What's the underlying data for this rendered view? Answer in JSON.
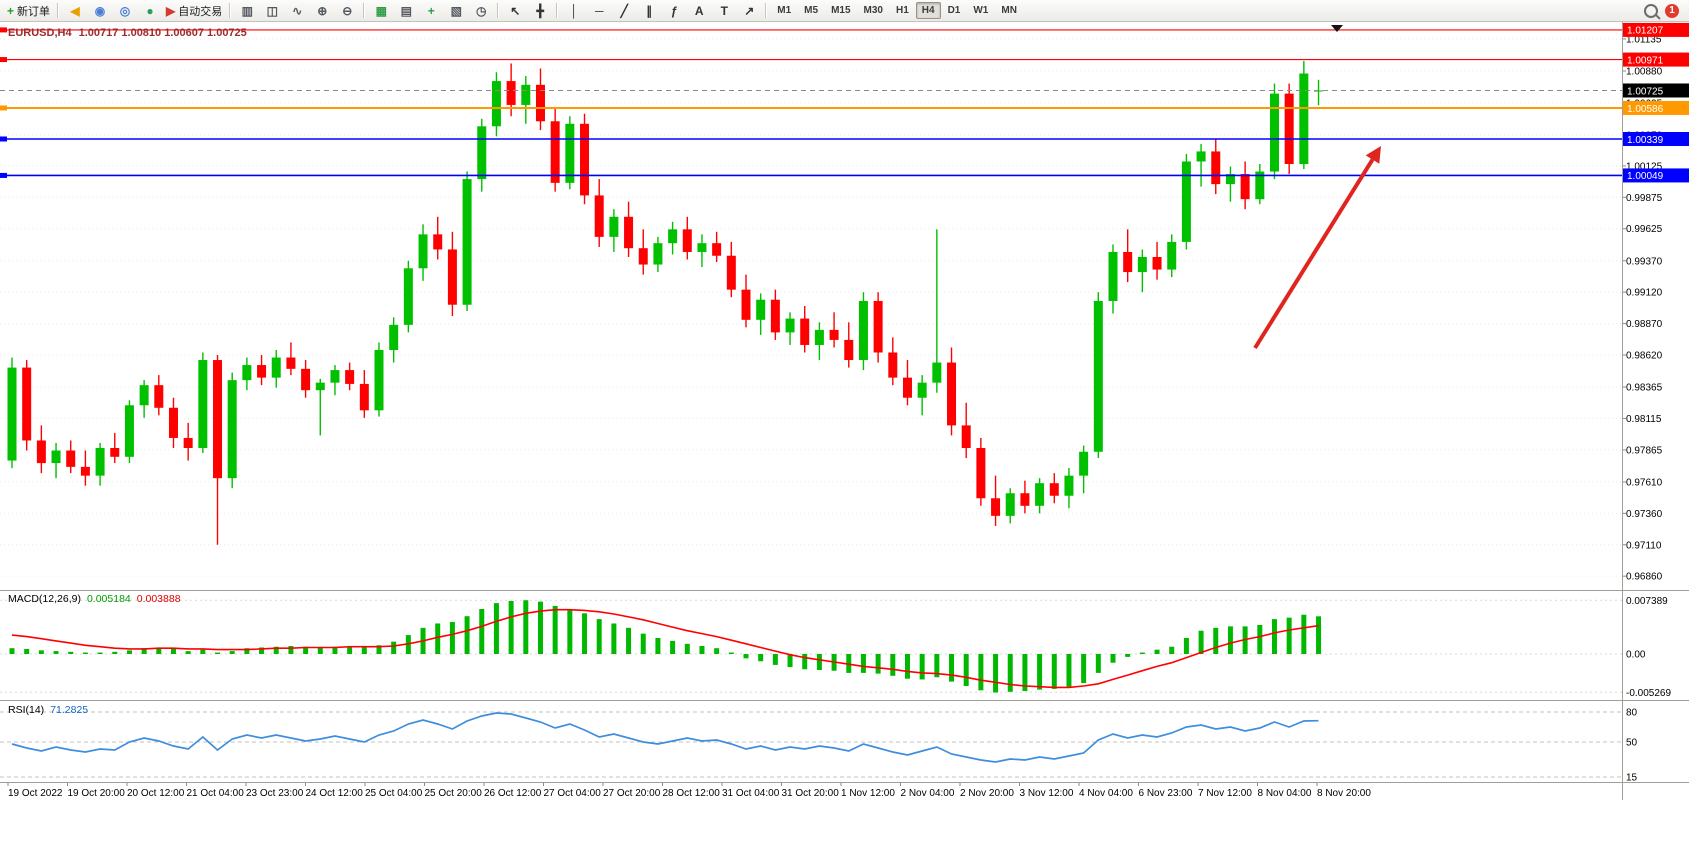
{
  "toolbar": {
    "new_order_label": "新订单",
    "auto_trading_label": "自动交易",
    "timeframes": [
      "M1",
      "M5",
      "M15",
      "M30",
      "H1",
      "H4",
      "D1",
      "W1",
      "MN"
    ],
    "active_timeframe": "H4",
    "notification_count": "1",
    "icons": [
      {
        "name": "new-order-button",
        "glyph": "+",
        "color": "#1f9d2c",
        "label": "新订单"
      },
      {
        "sep": true
      },
      {
        "name": "announcement-icon",
        "glyph": "◀",
        "color": "#e8a000"
      },
      {
        "name": "community-icon",
        "glyph": "◉",
        "color": "#4a7fd4"
      },
      {
        "name": "profiles-icon",
        "glyph": "◎",
        "color": "#4a7fd4"
      },
      {
        "name": "service-icon",
        "glyph": "●",
        "color": "#2aa05a"
      },
      {
        "name": "auto-trading-button",
        "glyph": "▶",
        "color": "#d43a2f",
        "label": "自动交易"
      },
      {
        "sep": true
      },
      {
        "name": "bars-chart-icon",
        "glyph": "▥",
        "color": "#555a60"
      },
      {
        "name": "candlestick-chart-icon",
        "glyph": "◫",
        "color": "#555a60"
      },
      {
        "name": "line-chart-icon",
        "glyph": "∿",
        "color": "#555a60"
      },
      {
        "name": "zoom-in-icon",
        "glyph": "⊕",
        "color": "#555a60"
      },
      {
        "name": "zoom-out-icon",
        "glyph": "⊖",
        "color": "#555a60"
      },
      {
        "sep": true
      },
      {
        "name": "tile-windows-icon",
        "glyph": "▦",
        "color": "#2f9e44"
      },
      {
        "name": "indicators-icon",
        "glyph": "▤",
        "color": "#555a60"
      },
      {
        "name": "add-indicator-icon",
        "glyph": "+",
        "color": "#2f9e44"
      },
      {
        "name": "templates-icon",
        "glyph": "▧",
        "color": "#555a60"
      },
      {
        "name": "period-icon",
        "glyph": "◷",
        "color": "#555a60"
      },
      {
        "sep": true
      },
      {
        "name": "cursor-icon",
        "glyph": "↖",
        "color": "#333333"
      },
      {
        "name": "crosshair-icon",
        "glyph": "╋",
        "color": "#333333"
      },
      {
        "sep": true
      },
      {
        "name": "vertical-line-icon",
        "glyph": "│",
        "color": "#333333"
      },
      {
        "name": "horizontal-line-icon",
        "glyph": "─",
        "color": "#333333"
      },
      {
        "name": "trendline-icon",
        "glyph": "╱",
        "color": "#333333"
      },
      {
        "name": "channel-icon",
        "glyph": "∥",
        "color": "#333333"
      },
      {
        "name": "fibonacci-icon",
        "glyph": "ƒ",
        "color": "#333333"
      },
      {
        "name": "text-icon",
        "glyph": "A",
        "color": "#333333"
      },
      {
        "name": "label-icon",
        "glyph": "T",
        "color": "#333333"
      },
      {
        "name": "arrows-icon",
        "glyph": "↗",
        "color": "#333333"
      },
      {
        "sep": true
      }
    ]
  },
  "chart": {
    "symbol_title": "EURUSD,H4",
    "ohlc_title": "1.00717 1.00810 1.00607 1.00725",
    "colors": {
      "up": "#00c000",
      "down": "#ff0000",
      "background": "#ffffff",
      "grid": "#ececec",
      "axis_text": "#000000",
      "title": "#9c2b2b",
      "macd_histogram": "#00b800",
      "macd_signal": "#ff0000",
      "rsi_line": "#3e8ede",
      "separator": "#a39e95"
    },
    "levels": [
      {
        "label": "1.01207",
        "price": 1.01207,
        "color": "#ff0000",
        "width": 1.2
      },
      {
        "label": "1.00971",
        "price": 1.00971,
        "color": "#ff0000",
        "width": 1.2
      },
      {
        "label": "1.00586",
        "price": 1.00586,
        "color": "#ff9900",
        "width": 2
      },
      {
        "label": "1.00339",
        "price": 1.00339,
        "color": "#0000ff",
        "width": 1.6
      },
      {
        "label": "1.00049",
        "price": 1.00049,
        "color": "#0000ff",
        "width": 1.6
      }
    ],
    "current_price": {
      "label": "1.00725",
      "price": 1.00725,
      "box_color": "#000000"
    },
    "price_axis_labels": [
      "1.01135",
      "1.00880",
      "1.00625",
      "1.00370",
      "1.00125",
      "0.99875",
      "0.99625",
      "0.99370",
      "0.99120",
      "0.98870",
      "0.98620",
      "0.98365",
      "0.98115",
      "0.97865",
      "0.97610",
      "0.97360",
      "0.97110",
      "0.96860"
    ],
    "macd": {
      "title": "MACD(12,26,9)",
      "value_main": "0.005184",
      "value_signal": "0.003888",
      "axis_labels": [
        "0.007389",
        "0.00",
        "-0.005269"
      ]
    },
    "rsi": {
      "title": "RSI(14)",
      "value": "71.2825",
      "level_labels": [
        "80",
        "50",
        "15"
      ]
    },
    "annotations": {
      "trend_arrow": {
        "from": [
          1255,
          348
        ],
        "to": [
          1381,
          146
        ],
        "color": "#e0251f"
      },
      "shift_marker_x": 1337
    }
  },
  "chart_data": {
    "type": "candlestick",
    "symbol": "EURUSD",
    "timeframe": "H4",
    "y_range": {
      "min": 0.9675,
      "max": 1.0127
    },
    "x_labels": [
      "19 Oct 2022",
      "19 Oct 20:00",
      "20 Oct 12:00",
      "21 Oct 04:00",
      "23 Oct 23:00",
      "24 Oct 12:00",
      "25 Oct 04:00",
      "25 Oct 20:00",
      "26 Oct 12:00",
      "27 Oct 04:00",
      "27 Oct 20:00",
      "28 Oct 12:00",
      "31 Oct 04:00",
      "31 Oct 20:00",
      "1 Nov 12:00",
      "2 Nov 04:00",
      "2 Nov 20:00",
      "3 Nov 12:00",
      "4 Nov 04:00",
      "6 Nov 23:00",
      "7 Nov 12:00",
      "8 Nov 04:00",
      "8 Nov 20:00"
    ],
    "candles": [
      [
        0.9778,
        0.986,
        0.9772,
        0.9852
      ],
      [
        0.9852,
        0.9858,
        0.9786,
        0.9794
      ],
      [
        0.9794,
        0.9806,
        0.9768,
        0.9776
      ],
      [
        0.9776,
        0.9792,
        0.9764,
        0.9786
      ],
      [
        0.9786,
        0.9794,
        0.9768,
        0.9773
      ],
      [
        0.9773,
        0.9786,
        0.9758,
        0.9766
      ],
      [
        0.9766,
        0.9792,
        0.9758,
        0.9788
      ],
      [
        0.9788,
        0.98,
        0.9776,
        0.9781
      ],
      [
        0.9781,
        0.9826,
        0.9776,
        0.9822
      ],
      [
        0.9822,
        0.9842,
        0.9812,
        0.9838
      ],
      [
        0.9838,
        0.9846,
        0.9814,
        0.982
      ],
      [
        0.982,
        0.9828,
        0.9788,
        0.9796
      ],
      [
        0.9796,
        0.9808,
        0.9778,
        0.9788
      ],
      [
        0.9788,
        0.9864,
        0.9784,
        0.9858
      ],
      [
        0.9858,
        0.9862,
        0.9711,
        0.9764
      ],
      [
        0.9764,
        0.9848,
        0.9756,
        0.9842
      ],
      [
        0.9842,
        0.986,
        0.9834,
        0.9854
      ],
      [
        0.9854,
        0.9862,
        0.9838,
        0.9844
      ],
      [
        0.9844,
        0.9866,
        0.9836,
        0.986
      ],
      [
        0.986,
        0.9872,
        0.9846,
        0.9851
      ],
      [
        0.9851,
        0.9858,
        0.9828,
        0.9834
      ],
      [
        0.9834,
        0.9843,
        0.9798,
        0.984
      ],
      [
        0.984,
        0.9854,
        0.983,
        0.985
      ],
      [
        0.985,
        0.9856,
        0.9834,
        0.9839
      ],
      [
        0.9839,
        0.985,
        0.9812,
        0.9818
      ],
      [
        0.9818,
        0.9872,
        0.9813,
        0.9866
      ],
      [
        0.9866,
        0.9892,
        0.9856,
        0.9886
      ],
      [
        0.9886,
        0.9937,
        0.988,
        0.9931
      ],
      [
        0.9931,
        0.9966,
        0.9921,
        0.9958
      ],
      [
        0.9958,
        0.9972,
        0.9938,
        0.9946
      ],
      [
        0.9946,
        0.996,
        0.9893,
        0.9902
      ],
      [
        0.9902,
        1.0008,
        0.9897,
        1.0002
      ],
      [
        1.0002,
        1.005,
        0.9992,
        1.0044
      ],
      [
        1.0044,
        1.0087,
        1.0036,
        1.008
      ],
      [
        1.008,
        1.0094,
        1.0052,
        1.0061
      ],
      [
        1.0061,
        1.0084,
        1.0046,
        1.0077
      ],
      [
        1.0077,
        1.009,
        1.0041,
        1.0048
      ],
      [
        1.0048,
        1.0058,
        0.9992,
        0.9999
      ],
      [
        0.9999,
        1.0052,
        0.9994,
        1.0046
      ],
      [
        1.0046,
        1.0054,
        0.9982,
        0.9989
      ],
      [
        0.9989,
        1.0002,
        0.9948,
        0.9956
      ],
      [
        0.9956,
        0.9978,
        0.9944,
        0.9972
      ],
      [
        0.9972,
        0.9984,
        0.994,
        0.9947
      ],
      [
        0.9947,
        0.9962,
        0.9926,
        0.9934
      ],
      [
        0.9934,
        0.9956,
        0.9928,
        0.9951
      ],
      [
        0.9951,
        0.9968,
        0.9942,
        0.9962
      ],
      [
        0.9962,
        0.9972,
        0.9938,
        0.9944
      ],
      [
        0.9944,
        0.9958,
        0.9932,
        0.9951
      ],
      [
        0.9951,
        0.996,
        0.9936,
        0.9941
      ],
      [
        0.9941,
        0.9952,
        0.9908,
        0.9914
      ],
      [
        0.9914,
        0.9926,
        0.9884,
        0.989
      ],
      [
        0.989,
        0.9911,
        0.9878,
        0.9906
      ],
      [
        0.9906,
        0.9914,
        0.9874,
        0.988
      ],
      [
        0.988,
        0.9896,
        0.987,
        0.9891
      ],
      [
        0.9891,
        0.9901,
        0.9864,
        0.987
      ],
      [
        0.987,
        0.9888,
        0.9858,
        0.9882
      ],
      [
        0.9882,
        0.9896,
        0.9868,
        0.9874
      ],
      [
        0.9874,
        0.9888,
        0.9852,
        0.9858
      ],
      [
        0.9858,
        0.9912,
        0.985,
        0.9905
      ],
      [
        0.9905,
        0.9912,
        0.9856,
        0.9864
      ],
      [
        0.9864,
        0.9876,
        0.9838,
        0.9844
      ],
      [
        0.9844,
        0.9858,
        0.9822,
        0.9828
      ],
      [
        0.9828,
        0.9846,
        0.9814,
        0.984
      ],
      [
        0.984,
        0.9962,
        0.9832,
        0.9856
      ],
      [
        0.9856,
        0.9868,
        0.9798,
        0.9806
      ],
      [
        0.9806,
        0.9824,
        0.978,
        0.9788
      ],
      [
        0.9788,
        0.9796,
        0.9742,
        0.9748
      ],
      [
        0.9748,
        0.9766,
        0.9726,
        0.9734
      ],
      [
        0.9734,
        0.9756,
        0.9728,
        0.9752
      ],
      [
        0.9752,
        0.9762,
        0.9736,
        0.9742
      ],
      [
        0.9742,
        0.9764,
        0.9736,
        0.976
      ],
      [
        0.976,
        0.9768,
        0.9744,
        0.975
      ],
      [
        0.975,
        0.9772,
        0.974,
        0.9766
      ],
      [
        0.9766,
        0.979,
        0.9752,
        0.9785
      ],
      [
        0.9785,
        0.9912,
        0.978,
        0.9905
      ],
      [
        0.9905,
        0.995,
        0.9895,
        0.9944
      ],
      [
        0.9944,
        0.9962,
        0.992,
        0.9928
      ],
      [
        0.9928,
        0.9946,
        0.9912,
        0.994
      ],
      [
        0.994,
        0.9952,
        0.9922,
        0.993
      ],
      [
        0.993,
        0.9958,
        0.9924,
        0.9952
      ],
      [
        0.9952,
        1.0022,
        0.9946,
        1.0016
      ],
      [
        1.0016,
        1.003,
        0.9996,
        1.0024
      ],
      [
        1.0024,
        1.0034,
        0.999,
        0.9998
      ],
      [
        0.9998,
        1.0012,
        0.9984,
        1.0006
      ],
      [
        1.0006,
        1.0016,
        0.9978,
        0.9986
      ],
      [
        0.9986,
        1.0014,
        0.9982,
        1.0008
      ],
      [
        1.0008,
        1.0078,
        1.0002,
        1.007
      ],
      [
        1.007,
        1.0078,
        1.0006,
        1.0014
      ],
      [
        1.0014,
        1.0096,
        1.001,
        1.0086
      ],
      [
        1.00717,
        1.0081,
        1.00607,
        1.00725
      ]
    ],
    "macd_histogram": [
      0.0008,
      0.0007,
      0.0005,
      0.0004,
      0.0003,
      0.0002,
      0.0002,
      0.0003,
      0.0005,
      0.0008,
      0.0009,
      0.0007,
      0.0004,
      0.0006,
      0.0002,
      0.0004,
      0.0008,
      0.0009,
      0.001,
      0.0011,
      0.001,
      0.0009,
      0.001,
      0.001,
      0.0009,
      0.0012,
      0.0017,
      0.0026,
      0.0036,
      0.0042,
      0.0044,
      0.0052,
      0.0062,
      0.007,
      0.0073,
      0.0074,
      0.0072,
      0.0066,
      0.0062,
      0.0056,
      0.0048,
      0.0042,
      0.0036,
      0.0028,
      0.0022,
      0.0018,
      0.0014,
      0.0011,
      0.0008,
      0.0002,
      -0.0006,
      -0.001,
      -0.0015,
      -0.0018,
      -0.0021,
      -0.0022,
      -0.0023,
      -0.0026,
      -0.0026,
      -0.0027,
      -0.003,
      -0.0034,
      -0.0035,
      -0.0032,
      -0.0038,
      -0.0044,
      -0.005,
      -0.0053,
      -0.0052,
      -0.0051,
      -0.0049,
      -0.0048,
      -0.0045,
      -0.004,
      -0.0026,
      -0.0012,
      -0.0004,
      0.0002,
      0.0006,
      0.001,
      0.0022,
      0.0032,
      0.0036,
      0.0038,
      0.0038,
      0.004,
      0.0048,
      0.005,
      0.0054,
      0.005184
    ],
    "macd_signal": [
      0.0026,
      0.0024,
      0.0021,
      0.0018,
      0.0015,
      0.0012,
      0.001,
      0.0008,
      0.0007,
      0.0007,
      0.0008,
      0.0008,
      0.0007,
      0.0007,
      0.0006,
      0.0006,
      0.0006,
      0.0007,
      0.0008,
      0.0008,
      0.0009,
      0.0009,
      0.0009,
      0.001,
      0.001,
      0.001,
      0.0011,
      0.0014,
      0.0018,
      0.0023,
      0.0027,
      0.0032,
      0.0038,
      0.0045,
      0.0051,
      0.0056,
      0.0059,
      0.0061,
      0.0061,
      0.006,
      0.0058,
      0.0055,
      0.0051,
      0.0047,
      0.0042,
      0.0037,
      0.0032,
      0.0028,
      0.0024,
      0.0019,
      0.0014,
      0.0009,
      0.0004,
      -0.0001,
      -0.0005,
      -0.0008,
      -0.0011,
      -0.0014,
      -0.0017,
      -0.0019,
      -0.0021,
      -0.0024,
      -0.0026,
      -0.0027,
      -0.0029,
      -0.0032,
      -0.0036,
      -0.0039,
      -0.0042,
      -0.0044,
      -0.0045,
      -0.0046,
      -0.0046,
      -0.0044,
      -0.0041,
      -0.0035,
      -0.0029,
      -0.0023,
      -0.0017,
      -0.0012,
      -0.0005,
      0.0002,
      0.0009,
      0.0015,
      0.002,
      0.0024,
      0.0029,
      0.0033,
      0.0036,
      0.003888
    ],
    "rsi": [
      48,
      44,
      41,
      45,
      42,
      40,
      43,
      42,
      50,
      54,
      51,
      46,
      43,
      55,
      42,
      53,
      57,
      54,
      57,
      54,
      51,
      53,
      56,
      53,
      50,
      57,
      61,
      68,
      72,
      68,
      63,
      71,
      76,
      79,
      78,
      74,
      70,
      64,
      68,
      62,
      55,
      58,
      54,
      50,
      48,
      51,
      54,
      51,
      52,
      48,
      43,
      46,
      42,
      45,
      43,
      46,
      44,
      41,
      48,
      44,
      40,
      37,
      41,
      45,
      38,
      35,
      32,
      30,
      33,
      32,
      35,
      33,
      36,
      39,
      52,
      58,
      54,
      57,
      55,
      59,
      65,
      67,
      63,
      65,
      61,
      64,
      70,
      65,
      71,
      71.28
    ]
  }
}
